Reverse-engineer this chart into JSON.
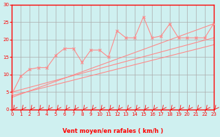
{
  "bg_color": "#cff0f0",
  "grid_color": "#aaaaaa",
  "line_color": "#ff8888",
  "axis_color": "#ff0000",
  "xlabel": "Vent moyen/en rafales ( km/h )",
  "ylabel": "",
  "xlim": [
    0,
    23
  ],
  "ylim": [
    0,
    30
  ],
  "xticks": [
    0,
    1,
    2,
    3,
    4,
    5,
    6,
    7,
    8,
    9,
    10,
    11,
    12,
    13,
    14,
    15,
    16,
    17,
    18,
    19,
    20,
    21,
    22,
    23
  ],
  "yticks": [
    0,
    5,
    10,
    15,
    20,
    25,
    30
  ],
  "scatter_x": [
    0,
    1,
    2,
    3,
    4,
    5,
    6,
    7,
    8,
    9,
    10,
    11,
    12,
    13,
    14,
    15,
    16,
    17,
    18,
    19,
    20,
    21,
    22,
    23
  ],
  "scatter_y": [
    4.5,
    9.5,
    11.5,
    12,
    12,
    15.5,
    17.5,
    17.5,
    13.5,
    17,
    17,
    15,
    22.5,
    20.5,
    20.5,
    26.5,
    20.5,
    21,
    24.5,
    20.5,
    20.5,
    20.5,
    20.5,
    24.5
  ],
  "line1_x": [
    0,
    23
  ],
  "line1_y": [
    4.0,
    18.5
  ],
  "line2_x": [
    0,
    23
  ],
  "line2_y": [
    5.0,
    20.5
  ],
  "line3_x": [
    0,
    23
  ],
  "line3_y": [
    3.5,
    24.5
  ]
}
